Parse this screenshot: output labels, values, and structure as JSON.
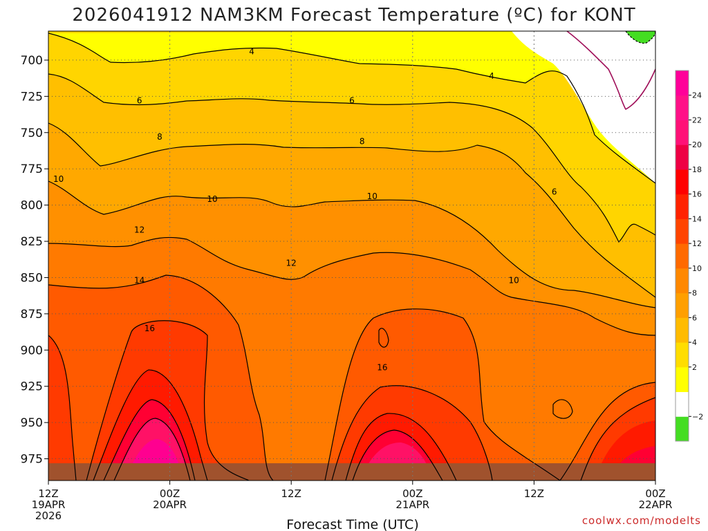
{
  "chart_data": {
    "type": "contour",
    "title": "2026041912 NAM3KM Forecast Temperature (ºC) for KONT",
    "xlabel": "Forecast Time (UTC)",
    "ylabel": "",
    "y_axis": {
      "ticks": [
        700,
        725,
        750,
        775,
        800,
        825,
        850,
        875,
        900,
        925,
        950,
        975
      ],
      "range": [
        680,
        990
      ],
      "inverted": true
    },
    "x_axis": {
      "range_hours": [
        0,
        60
      ],
      "ticks": [
        {
          "hour": 0,
          "lines": [
            "12Z",
            "19APR",
            "2026"
          ]
        },
        {
          "hour": 12,
          "lines": [
            "00Z",
            "20APR"
          ]
        },
        {
          "hour": 24,
          "lines": [
            "12Z"
          ]
        },
        {
          "hour": 36,
          "lines": [
            "00Z",
            "21APR"
          ]
        },
        {
          "hour": 48,
          "lines": [
            "12Z"
          ]
        },
        {
          "hour": 60,
          "lines": [
            "00Z",
            "22APR"
          ]
        }
      ]
    },
    "grid": true,
    "colorbar": {
      "levels": [
        -4,
        -2,
        0,
        2,
        4,
        6,
        8,
        10,
        12,
        14,
        16,
        18,
        20,
        22,
        24,
        26
      ],
      "colors": [
        "#44dd22",
        "#ffffff",
        "#ffff00",
        "#ffdd00",
        "#ffbb00",
        "#ff9f00",
        "#ff8800",
        "#ff6a00",
        "#ff4400",
        "#ff2200",
        "#ff0000",
        "#ee0044",
        "#ff1177",
        "#ff1188",
        "#ff0099"
      ],
      "tick_labels": [
        "−2",
        "2",
        "4",
        "6",
        "8",
        "10",
        "12",
        "14",
        "16",
        "18",
        "20",
        "22",
        "24"
      ]
    },
    "contour_labels": [
      {
        "text": "4",
        "hour": 20.1,
        "p": 694
      },
      {
        "text": "4",
        "hour": 43.8,
        "p": 711
      },
      {
        "text": "6",
        "hour": 9.0,
        "p": 728
      },
      {
        "text": "6",
        "hour": 30.0,
        "p": 728
      },
      {
        "text": "6",
        "hour": 50.0,
        "p": 791
      },
      {
        "text": "8",
        "hour": 11.0,
        "p": 753
      },
      {
        "text": "8",
        "hour": 31.0,
        "p": 756
      },
      {
        "text": "10",
        "hour": 1.0,
        "p": 782
      },
      {
        "text": "10",
        "hour": 16.2,
        "p": 796
      },
      {
        "text": "10",
        "hour": 32.0,
        "p": 794
      },
      {
        "text": "10",
        "hour": 46.0,
        "p": 852
      },
      {
        "text": "12",
        "hour": 9.0,
        "p": 817
      },
      {
        "text": "12",
        "hour": 24.0,
        "p": 840
      },
      {
        "text": "14",
        "hour": 9.0,
        "p": 852
      },
      {
        "text": "16",
        "hour": 10.0,
        "p": 885
      },
      {
        "text": "16",
        "hour": 33.0,
        "p": 912
      }
    ],
    "terrain_surface_mb": 980
  },
  "credit": "coolwx.com/modelts",
  "colors": {
    "terrain": "#a0522d",
    "contour_line": "#000000",
    "zero_line": "#a0105a"
  }
}
